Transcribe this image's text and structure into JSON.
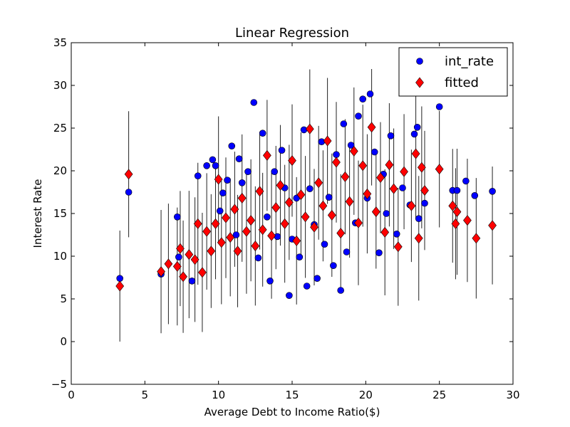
{
  "chart_data": {
    "type": "scatter",
    "title": "Linear Regression",
    "xlabel": "Average Debt to Income Ratio($)",
    "ylabel": "Interest Rate",
    "xlim": [
      0,
      30
    ],
    "ylim": [
      -5,
      35
    ],
    "xticks": [
      "0",
      "5",
      "10",
      "15",
      "20",
      "25",
      "30"
    ],
    "yticks": [
      "−5",
      "0",
      "5",
      "10",
      "15",
      "20",
      "25",
      "30",
      "35"
    ],
    "grid": false,
    "legend_position": "top-right",
    "series": [
      {
        "name": "int_rate",
        "marker": "circle",
        "color": "#0000ff",
        "points": [
          [
            3.3,
            7.4
          ],
          [
            3.9,
            17.5
          ],
          [
            6.1,
            7.9
          ],
          [
            7.2,
            14.6
          ],
          [
            7.3,
            9.9
          ],
          [
            8.2,
            7.1
          ],
          [
            8.6,
            19.4
          ],
          [
            9.2,
            20.6
          ],
          [
            9.6,
            21.3
          ],
          [
            9.8,
            20.6
          ],
          [
            10.1,
            15.3
          ],
          [
            10.3,
            17.4
          ],
          [
            10.6,
            18.9
          ],
          [
            10.9,
            22.9
          ],
          [
            11.2,
            12.5
          ],
          [
            11.4,
            21.4
          ],
          [
            11.6,
            18.6
          ],
          [
            12.0,
            19.9
          ],
          [
            12.4,
            28.0
          ],
          [
            12.7,
            9.8
          ],
          [
            13.0,
            24.4
          ],
          [
            13.3,
            14.6
          ],
          [
            13.5,
            7.1
          ],
          [
            13.8,
            19.9
          ],
          [
            14.0,
            12.3
          ],
          [
            14.3,
            22.4
          ],
          [
            14.5,
            18.0
          ],
          [
            14.8,
            5.4
          ],
          [
            15.0,
            12.0
          ],
          [
            15.3,
            16.8
          ],
          [
            15.5,
            9.9
          ],
          [
            15.8,
            24.8
          ],
          [
            16.0,
            6.5
          ],
          [
            16.2,
            17.9
          ],
          [
            16.5,
            13.7
          ],
          [
            16.7,
            7.4
          ],
          [
            17.0,
            23.4
          ],
          [
            17.2,
            11.4
          ],
          [
            17.5,
            16.9
          ],
          [
            17.8,
            8.9
          ],
          [
            18.0,
            21.9
          ],
          [
            18.3,
            6.0
          ],
          [
            18.5,
            25.5
          ],
          [
            18.7,
            10.5
          ],
          [
            19.0,
            23.0
          ],
          [
            19.3,
            13.9
          ],
          [
            19.5,
            26.4
          ],
          [
            19.8,
            28.4
          ],
          [
            20.1,
            16.8
          ],
          [
            20.3,
            29.0
          ],
          [
            20.6,
            22.2
          ],
          [
            20.9,
            10.4
          ],
          [
            21.2,
            19.6
          ],
          [
            21.4,
            15.0
          ],
          [
            21.7,
            24.1
          ],
          [
            22.1,
            12.6
          ],
          [
            22.5,
            18.0
          ],
          [
            23.0,
            16.0
          ],
          [
            23.3,
            24.3
          ],
          [
            23.5,
            25.1
          ],
          [
            23.6,
            14.4
          ],
          [
            24.0,
            16.2
          ],
          [
            25.0,
            27.5
          ],
          [
            25.9,
            17.7
          ],
          [
            26.2,
            17.7
          ],
          [
            26.8,
            18.8
          ],
          [
            27.4,
            17.1
          ],
          [
            28.6,
            17.6
          ]
        ]
      },
      {
        "name": "fitted",
        "marker": "diamond",
        "color": "#ff0000",
        "points": [
          [
            3.3,
            6.5
          ],
          [
            3.9,
            19.6
          ],
          [
            6.1,
            8.2
          ],
          [
            6.6,
            9.1
          ],
          [
            7.2,
            8.8
          ],
          [
            7.4,
            10.9
          ],
          [
            7.6,
            7.6
          ],
          [
            8.0,
            10.2
          ],
          [
            8.4,
            9.6
          ],
          [
            8.6,
            13.8
          ],
          [
            8.9,
            8.1
          ],
          [
            9.2,
            12.9
          ],
          [
            9.5,
            10.6
          ],
          [
            9.8,
            13.8
          ],
          [
            10.0,
            19.0
          ],
          [
            10.2,
            11.6
          ],
          [
            10.5,
            14.5
          ],
          [
            10.8,
            12.2
          ],
          [
            11.1,
            15.5
          ],
          [
            11.3,
            10.6
          ],
          [
            11.6,
            16.8
          ],
          [
            11.9,
            12.9
          ],
          [
            12.2,
            14.2
          ],
          [
            12.5,
            11.2
          ],
          [
            12.8,
            17.6
          ],
          [
            13.0,
            13.1
          ],
          [
            13.3,
            21.8
          ],
          [
            13.6,
            12.4
          ],
          [
            13.9,
            15.7
          ],
          [
            14.2,
            18.3
          ],
          [
            14.5,
            13.8
          ],
          [
            14.8,
            16.3
          ],
          [
            15.0,
            21.2
          ],
          [
            15.3,
            11.8
          ],
          [
            15.6,
            17.2
          ],
          [
            15.9,
            14.6
          ],
          [
            16.2,
            24.9
          ],
          [
            16.5,
            13.4
          ],
          [
            16.8,
            18.6
          ],
          [
            17.1,
            15.9
          ],
          [
            17.4,
            23.5
          ],
          [
            17.7,
            14.8
          ],
          [
            18.0,
            21.0
          ],
          [
            18.3,
            12.7
          ],
          [
            18.6,
            19.3
          ],
          [
            18.9,
            16.4
          ],
          [
            19.2,
            22.3
          ],
          [
            19.5,
            13.9
          ],
          [
            19.8,
            20.6
          ],
          [
            20.1,
            17.3
          ],
          [
            20.4,
            25.1
          ],
          [
            20.7,
            15.2
          ],
          [
            21.0,
            19.2
          ],
          [
            21.3,
            12.8
          ],
          [
            21.6,
            20.7
          ],
          [
            21.9,
            17.9
          ],
          [
            22.2,
            11.1
          ],
          [
            22.6,
            19.9
          ],
          [
            23.1,
            15.9
          ],
          [
            23.4,
            22.0
          ],
          [
            23.6,
            12.1
          ],
          [
            23.8,
            20.4
          ],
          [
            24.0,
            17.7
          ],
          [
            25.0,
            20.2
          ],
          [
            25.9,
            15.9
          ],
          [
            26.1,
            13.8
          ],
          [
            26.2,
            15.2
          ],
          [
            26.9,
            14.2
          ],
          [
            27.5,
            12.1
          ],
          [
            28.6,
            13.6
          ]
        ]
      }
    ]
  }
}
